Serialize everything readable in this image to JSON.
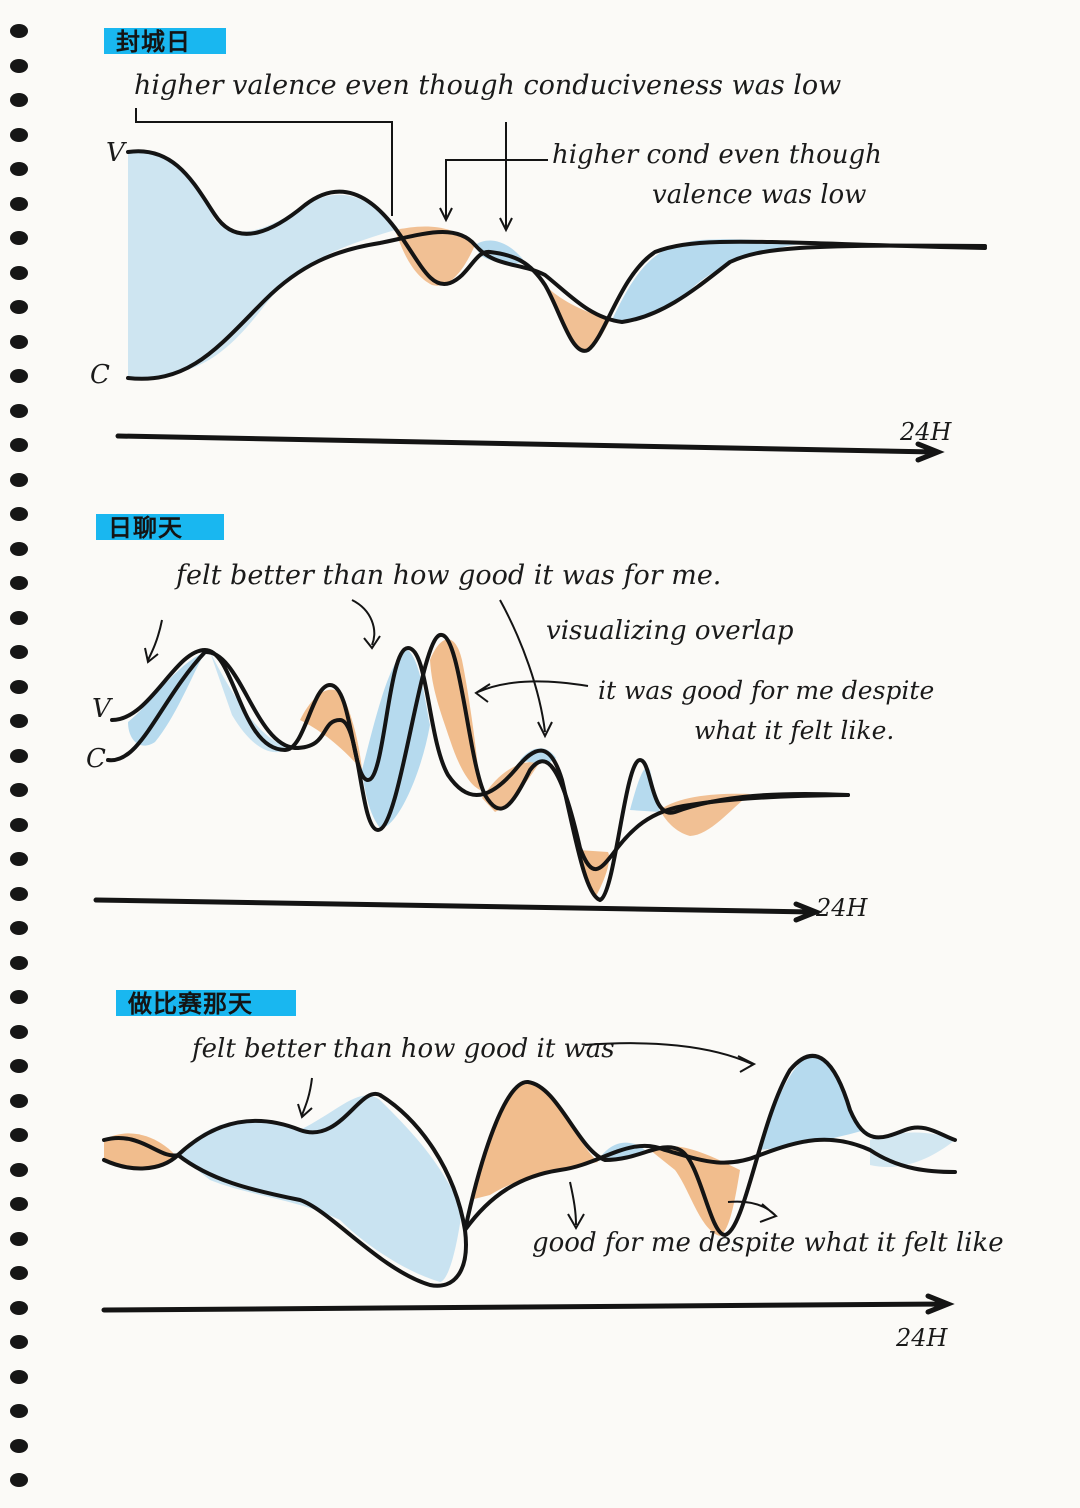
{
  "section_1": {
    "title": "封城日",
    "note_high_valence": "higher valence even though conduciveness was low",
    "note_high_cond_line1": "higher cond even though",
    "note_high_cond_line2": "valence was low",
    "label_v": "V",
    "label_c": "C",
    "axis_label": "24H"
  },
  "section_2": {
    "title": " 日聊天",
    "note_felt_better": "felt better than how good it was for me.",
    "note_visualizing": "visualizing overlap",
    "note_good_line1": "it was good for me despite",
    "note_good_line2": "what it felt like.",
    "label_v": "V",
    "label_c": "C",
    "axis_label": "24H"
  },
  "section_3": {
    "title": "做比赛那天",
    "note_felt_better": "felt better than how good it was",
    "note_good": "good for me despite what it felt like",
    "axis_label": "24H"
  },
  "colors": {
    "highlight": "#19b7f0",
    "fill_blue": "#a9d3ec",
    "fill_orange": "#efb27a",
    "ink": "#141414"
  }
}
